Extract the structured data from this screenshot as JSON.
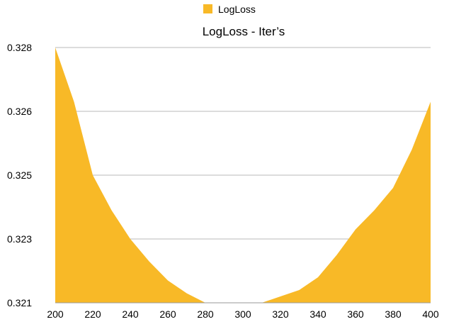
{
  "chart_data": {
    "type": "area",
    "title": "LogLoss - Iter’s",
    "xlabel": "",
    "ylabel": "",
    "legend": {
      "placement": "top-center",
      "entries": [
        "LogLoss"
      ]
    },
    "grid": true,
    "xlim": [
      200,
      400
    ],
    "ylim": [
      0.321,
      0.328
    ],
    "x_ticks": [
      200,
      220,
      240,
      260,
      280,
      300,
      320,
      340,
      360,
      380,
      400
    ],
    "y_ticks": [
      0.321,
      0.323,
      0.325,
      0.326,
      0.328
    ],
    "series": [
      {
        "name": "LogLoss",
        "color": "#f8b927",
        "x": [
          200,
          210,
          220,
          230,
          240,
          250,
          260,
          270,
          280,
          290,
          300,
          310,
          320,
          330,
          340,
          350,
          360,
          370,
          380,
          390,
          400
        ],
        "values": [
          0.328,
          0.3263,
          0.325,
          0.3239,
          0.323,
          0.3223,
          0.3217,
          0.3213,
          0.32095,
          0.3209,
          0.32085,
          0.3209,
          0.3212,
          0.3214,
          0.3218,
          0.3225,
          0.3233,
          0.3239,
          0.3246,
          0.3254,
          0.3263
        ]
      }
    ]
  }
}
